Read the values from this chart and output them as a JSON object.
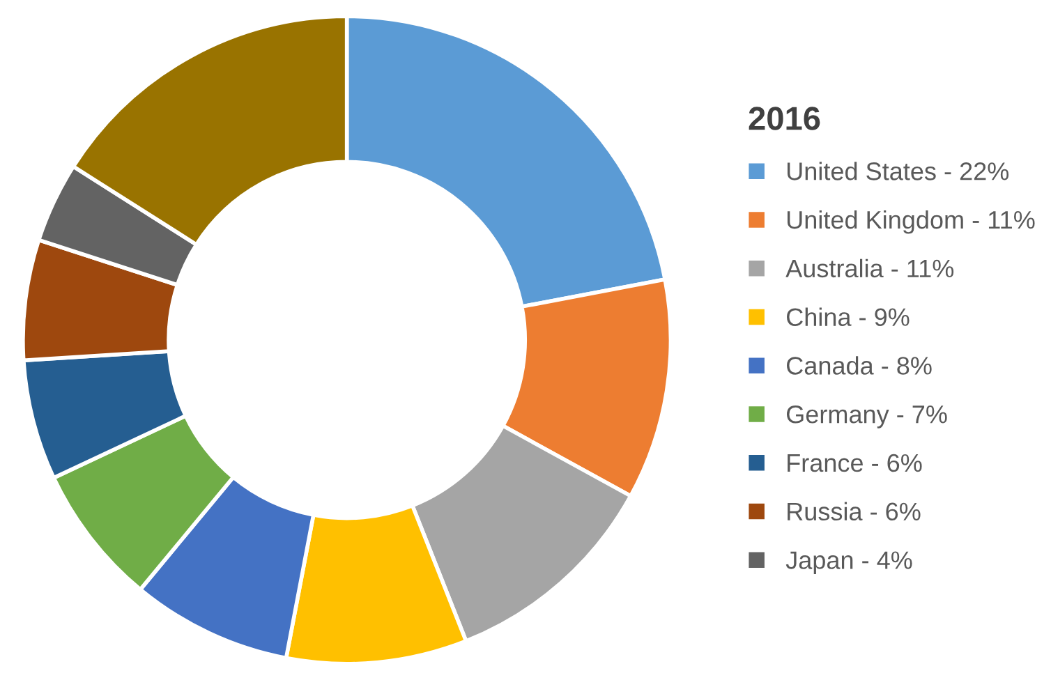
{
  "chart_data": {
    "type": "donut",
    "legend_title": "2016",
    "categories": [
      "United States - 22%",
      "United Kingdom - 11%",
      "Australia - 11%",
      "China - 9%",
      "Canada - 8%",
      "Germany - 7%",
      "France - 6%",
      "Russia - 6%",
      "Japan - 4%",
      null
    ],
    "values": [
      22,
      11,
      11,
      9,
      8,
      7,
      6,
      6,
      4,
      16
    ],
    "colors": [
      "#5b9bd5",
      "#ed7d31",
      "#a5a5a5",
      "#ffc000",
      "#4472c4",
      "#70ad47",
      "#255e91",
      "#9e480e",
      "#636363",
      "#997300"
    ],
    "legend": "right"
  }
}
